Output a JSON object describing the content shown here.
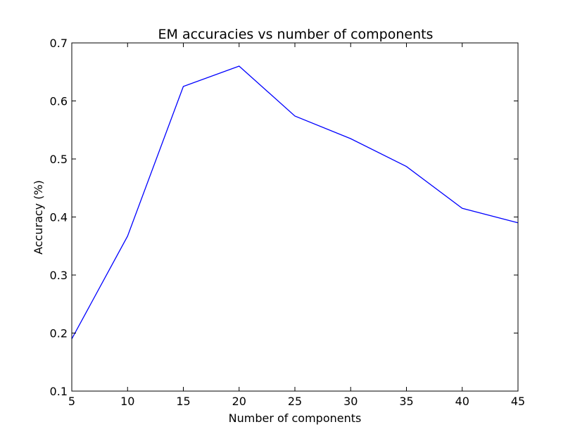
{
  "chart_data": {
    "type": "line",
    "title": "EM accuracies vs number of components",
    "xlabel": "Number of components",
    "ylabel": "Accuracy (%)",
    "xlim": [
      5,
      45
    ],
    "ylim": [
      0.1,
      0.7
    ],
    "x_ticks": [
      "5",
      "10",
      "15",
      "20",
      "25",
      "30",
      "35",
      "40",
      "45"
    ],
    "y_ticks": [
      "0.1",
      "0.2",
      "0.3",
      "0.4",
      "0.5",
      "0.6",
      "0.7"
    ],
    "x": [
      5,
      10,
      15,
      20,
      25,
      30,
      35,
      40,
      45
    ],
    "series": [
      {
        "values": [
          0.19,
          0.367,
          0.625,
          0.66,
          0.574,
          0.535,
          0.487,
          0.415,
          0.39
        ],
        "color": "#0000ff"
      }
    ],
    "grid": false,
    "legend": "none"
  }
}
